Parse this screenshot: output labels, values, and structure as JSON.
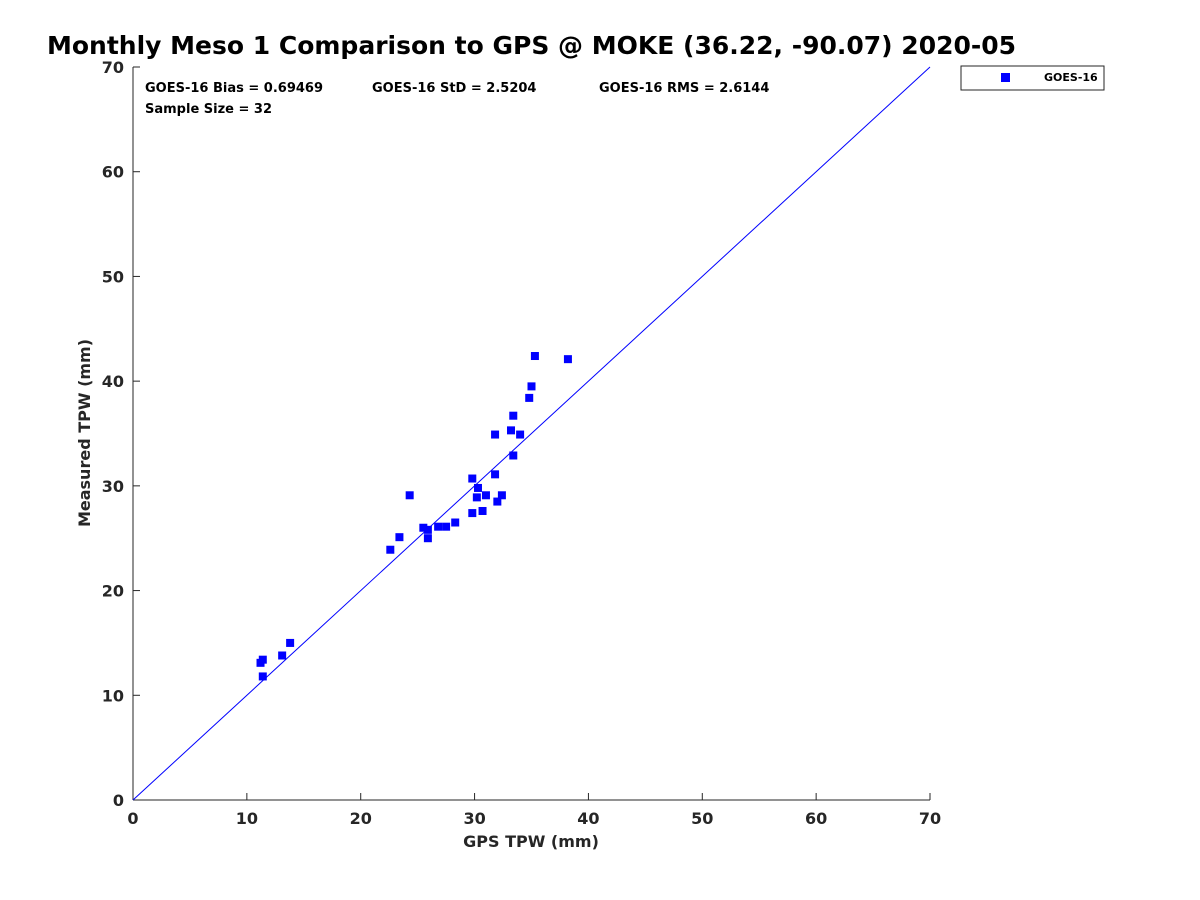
{
  "chart_data": {
    "type": "scatter",
    "title": "Monthly Meso 1 Comparison to GPS @ MOKE (36.22, -90.07) 2020-05",
    "xlabel": "GPS TPW (mm)",
    "ylabel": "Measured TPW (mm)",
    "xlim": [
      0,
      70
    ],
    "ylim": [
      0,
      70
    ],
    "xticks": [
      "0",
      "10",
      "20",
      "30",
      "40",
      "50",
      "60",
      "70"
    ],
    "yticks": [
      "0",
      "10",
      "20",
      "30",
      "40",
      "50",
      "60",
      "70"
    ],
    "grid": false,
    "legend_position": "top-right, outside plot",
    "colors": {
      "series": "#0000ff",
      "reference_line": "#0000ff"
    },
    "reference_line": {
      "x": [
        0,
        70
      ],
      "y": [
        0,
        70
      ]
    },
    "stats": {
      "bias": "GOES-16 Bias = 0.69469",
      "std": "GOES-16 StD = 2.5204",
      "rms": "GOES-16 RMS = 2.6144",
      "sample_size": "Sample Size = 32"
    },
    "series": [
      {
        "name": "GOES-16",
        "marker": "square",
        "points": [
          [
            11.2,
            13.1
          ],
          [
            11.4,
            13.4
          ],
          [
            11.4,
            11.8
          ],
          [
            13.1,
            13.8
          ],
          [
            13.8,
            15.0
          ],
          [
            22.6,
            23.9
          ],
          [
            23.4,
            25.1
          ],
          [
            24.3,
            29.1
          ],
          [
            25.5,
            26.0
          ],
          [
            25.9,
            25.8
          ],
          [
            25.9,
            25.0
          ],
          [
            26.8,
            26.1
          ],
          [
            27.5,
            26.1
          ],
          [
            28.3,
            26.5
          ],
          [
            29.8,
            30.7
          ],
          [
            29.8,
            27.4
          ],
          [
            30.2,
            28.9
          ],
          [
            30.3,
            29.8
          ],
          [
            30.7,
            27.6
          ],
          [
            31.0,
            29.1
          ],
          [
            31.8,
            31.1
          ],
          [
            31.8,
            34.9
          ],
          [
            32.0,
            28.5
          ],
          [
            32.4,
            29.1
          ],
          [
            33.2,
            35.3
          ],
          [
            33.4,
            36.7
          ],
          [
            33.4,
            32.9
          ],
          [
            34.0,
            34.9
          ],
          [
            34.8,
            38.4
          ],
          [
            35.0,
            39.5
          ],
          [
            35.3,
            42.4
          ],
          [
            38.2,
            42.1
          ]
        ]
      }
    ]
  }
}
